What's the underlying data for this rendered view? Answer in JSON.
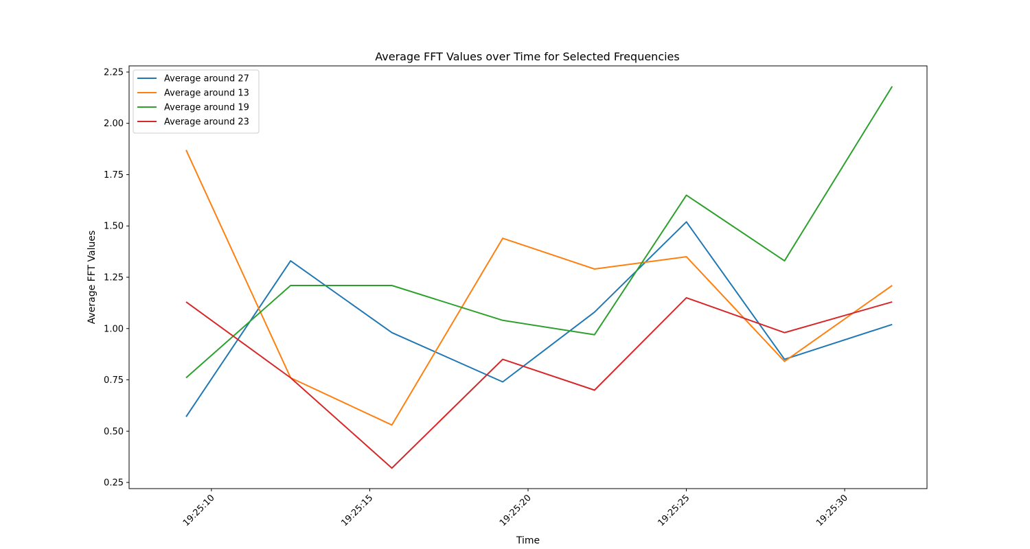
{
  "chart_data": {
    "type": "line",
    "title": "Average FFT Values over Time for Selected Frequencies",
    "xlabel": "Time",
    "ylabel": "Average FFT Values",
    "x": [
      "19:25:09.2",
      "19:25:12.5",
      "19:25:15.7",
      "19:25:19.2",
      "19:25:22.1",
      "19:25:25.0",
      "19:25:28.1",
      "19:25:31.5"
    ],
    "x_seconds_range": [
      7.4,
      32.6
    ],
    "xticks": [
      {
        "label": "19:25:10",
        "value": 10
      },
      {
        "label": "19:25:15",
        "value": 15
      },
      {
        "label": "19:25:20",
        "value": 20
      },
      {
        "label": "19:25:25",
        "value": 25
      },
      {
        "label": "19:25:30",
        "value": 30
      }
    ],
    "ylim": [
      0.22,
      2.28
    ],
    "yticks": [
      {
        "label": "0.25",
        "value": 0.25
      },
      {
        "label": "0.50",
        "value": 0.5
      },
      {
        "label": "0.75",
        "value": 0.75
      },
      {
        "label": "1.00",
        "value": 1.0
      },
      {
        "label": "1.25",
        "value": 1.25
      },
      {
        "label": "1.50",
        "value": 1.5
      },
      {
        "label": "1.75",
        "value": 1.75
      },
      {
        "label": "2.00",
        "value": 2.0
      },
      {
        "label": "2.25",
        "value": 2.25
      }
    ],
    "grid": false,
    "legend_position": "top-left",
    "series": [
      {
        "name": "Average around 27",
        "color": "#1f77b4",
        "values": [
          0.57,
          1.33,
          0.98,
          0.74,
          1.08,
          1.52,
          0.85,
          1.02
        ]
      },
      {
        "name": "Average around 13",
        "color": "#ff7f0e",
        "values": [
          1.87,
          0.76,
          0.53,
          1.44,
          1.29,
          1.35,
          0.84,
          1.21
        ]
      },
      {
        "name": "Average around 19",
        "color": "#2ca02c",
        "values": [
          0.76,
          1.21,
          1.21,
          1.04,
          0.97,
          1.65,
          1.33,
          2.18
        ]
      },
      {
        "name": "Average around 23",
        "color": "#d62728",
        "values": [
          1.13,
          0.76,
          0.32,
          0.85,
          0.7,
          1.15,
          0.98,
          1.13
        ]
      }
    ]
  }
}
